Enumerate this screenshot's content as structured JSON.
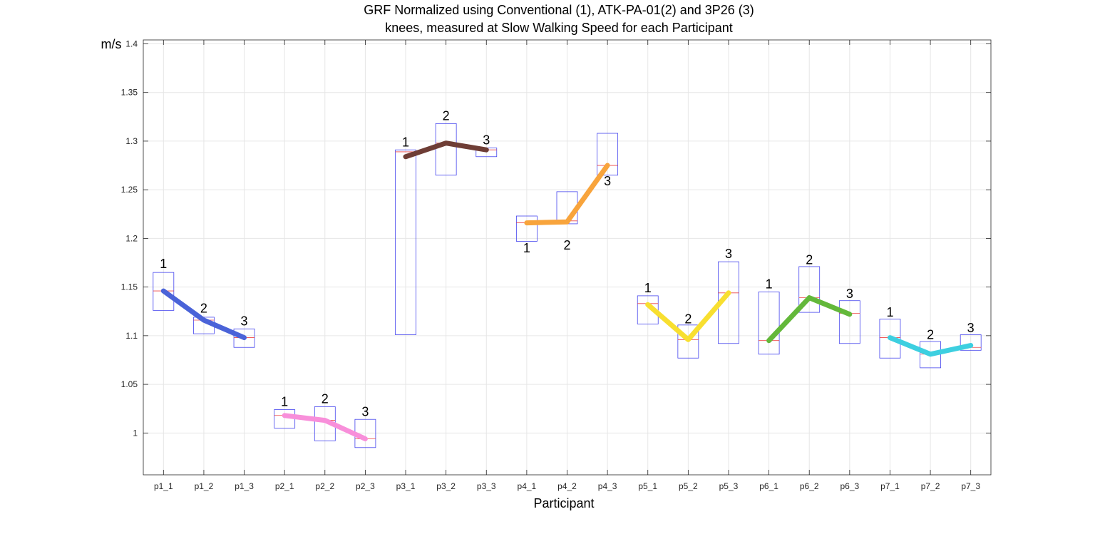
{
  "chart_data": {
    "type": "box",
    "title": "GRF Normalized using Conventional (1), ATK-PA-01(2) and 3P26 (3)",
    "subtitle": "knees, measured at Slow Walking Speed for each Participant",
    "xlabel": "Participant",
    "ylabel": "m/s",
    "ylim": [
      0.957,
      1.404
    ],
    "yticks": [
      1,
      1.05,
      1.1,
      1.15,
      1.2,
      1.25,
      1.3,
      1.35,
      1.4
    ],
    "ytick_labels": [
      "1",
      "1.05",
      "1.1",
      "1.15",
      "1.2",
      "1.25",
      "1.3",
      "1.35",
      "1.4"
    ],
    "grid": true,
    "categories": [
      "p1_1",
      "p1_2",
      "p1_3",
      "p2_1",
      "p2_2",
      "p2_3",
      "p3_1",
      "p3_2",
      "p3_3",
      "p4_1",
      "p4_2",
      "p4_3",
      "p5_1",
      "p5_2",
      "p5_3",
      "p6_1",
      "p6_2",
      "p6_3",
      "p7_1",
      "p7_2",
      "p7_3"
    ],
    "box_color": "#4444ee",
    "median_color": "#ee4444",
    "boxes": [
      {
        "q1": 1.126,
        "median": 1.146,
        "q3": 1.165
      },
      {
        "q1": 1.102,
        "median": 1.116,
        "q3": 1.119
      },
      {
        "q1": 1.088,
        "median": 1.098,
        "q3": 1.107
      },
      {
        "q1": 1.005,
        "median": 1.018,
        "q3": 1.024
      },
      {
        "q1": 0.992,
        "median": 1.013,
        "q3": 1.027
      },
      {
        "q1": 0.985,
        "median": 0.994,
        "q3": 1.014
      },
      {
        "q1": 1.101,
        "median": 1.289,
        "q3": 1.291
      },
      {
        "q1": 1.265,
        "median": 1.298,
        "q3": 1.318
      },
      {
        "q1": 1.284,
        "median": 1.291,
        "q3": 1.293
      },
      {
        "q1": 1.197,
        "median": 1.216,
        "q3": 1.223
      },
      {
        "q1": 1.215,
        "median": 1.218,
        "q3": 1.248
      },
      {
        "q1": 1.265,
        "median": 1.275,
        "q3": 1.308
      },
      {
        "q1": 1.112,
        "median": 1.133,
        "q3": 1.141
      },
      {
        "q1": 1.077,
        "median": 1.096,
        "q3": 1.111
      },
      {
        "q1": 1.092,
        "median": 1.144,
        "q3": 1.176
      },
      {
        "q1": 1.081,
        "median": 1.095,
        "q3": 1.145
      },
      {
        "q1": 1.124,
        "median": 1.139,
        "q3": 1.171
      },
      {
        "q1": 1.092,
        "median": 1.123,
        "q3": 1.136
      },
      {
        "q1": 1.077,
        "median": 1.098,
        "q3": 1.117
      },
      {
        "q1": 1.067,
        "median": 1.081,
        "q3": 1.094
      },
      {
        "q1": 1.085,
        "median": 1.088,
        "q3": 1.101
      }
    ],
    "series": [
      {
        "color": "#4a63d8",
        "start": 0,
        "values": [
          1.146,
          1.116,
          1.098
        ],
        "labels": [
          "1",
          "2",
          "3"
        ],
        "label_values": [
          1.174,
          1.128,
          1.115
        ]
      },
      {
        "color": "#f88fda",
        "start": 3,
        "values": [
          1.018,
          1.013,
          0.994
        ],
        "labels": [
          "1",
          "2",
          "3"
        ],
        "label_values": [
          1.032,
          1.035,
          1.022
        ]
      },
      {
        "color": "#6e3d35",
        "start": 6,
        "values": [
          1.284,
          1.298,
          1.291
        ],
        "labels": [
          "1",
          "2",
          "3"
        ],
        "label_values": [
          1.299,
          1.326,
          1.301
        ]
      },
      {
        "color": "#f8a43c",
        "start": 9,
        "values": [
          1.216,
          1.217,
          1.275
        ],
        "labels": [
          "1",
          "2",
          "3"
        ],
        "label_values": [
          1.19,
          1.193,
          1.259
        ]
      },
      {
        "color": "#f8df30",
        "start": 12,
        "values": [
          1.132,
          1.096,
          1.144
        ],
        "labels": [
          "1",
          "2",
          "3"
        ],
        "label_values": [
          1.149,
          1.117,
          1.184
        ]
      },
      {
        "color": "#63b83a",
        "start": 15,
        "values": [
          1.095,
          1.139,
          1.122
        ],
        "labels": [
          "1",
          "2",
          "3"
        ],
        "label_values": [
          1.153,
          1.178,
          1.143
        ]
      },
      {
        "color": "#3dcfe0",
        "start": 18,
        "values": [
          1.098,
          1.081,
          1.09
        ],
        "labels": [
          "1",
          "2",
          "3"
        ],
        "label_values": [
          1.124,
          1.101,
          1.108
        ]
      }
    ]
  }
}
